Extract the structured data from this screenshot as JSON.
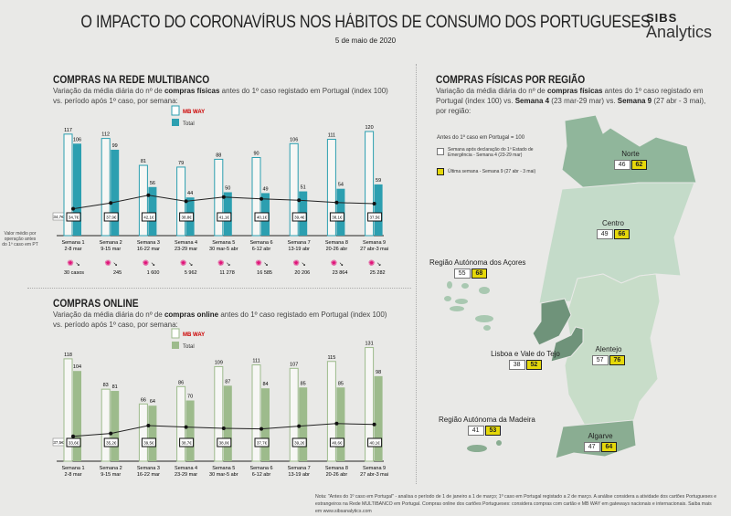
{
  "header": {
    "title": "O IMPACTO DO CORONAVÍRUS NOS HÁBITOS DE CONSUMO DOS PORTUGUESES",
    "date": "5 de maio de 2020",
    "logo_top": "SIBS",
    "logo_bottom": "Analytics"
  },
  "colors": {
    "multibanco": "#2c9fb0",
    "online": "#9dbb8c",
    "highlight": "#e5d80a",
    "cases": "#e0157a"
  },
  "weeks": [
    "Semana 1",
    "Semana 2",
    "Semana 3",
    "Semana 4",
    "Semana 5",
    "Semana 6",
    "Semana 7",
    "Semana 8",
    "Semana 9"
  ],
  "week_dates": [
    "2-8 mar",
    "9-15 mar",
    "16-22 mar",
    "23-29 mar",
    "30 mar-5 abr",
    "6-12 abr",
    "13-19 abr",
    "20-26 abr",
    "27 abr-3 mai"
  ],
  "legend": {
    "mbway": "MB WAY",
    "total": "Total"
  },
  "avg_note": "Valor médio por operação antes do 1º caso em PT",
  "chart_data": [
    {
      "type": "bar",
      "title": "COMPRAS NA REDE MULTIBANCO",
      "subtitle_parts": [
        "Variação da média diária do nº de ",
        "compras físicas",
        " antes do 1º caso registado em Portugal (index 100) vs. período após 1º caso, por semana:"
      ],
      "series": [
        {
          "name": "MB WAY",
          "values": [
            117,
            112,
            81,
            79,
            88,
            90,
            106,
            111,
            120
          ]
        },
        {
          "name": "Total",
          "values": [
            106,
            99,
            56,
            44,
            50,
            49,
            51,
            54,
            59
          ]
        }
      ],
      "avg_before": "34,7€",
      "avg_ticket": [
        "34,7€",
        "37,9€",
        "42,1€",
        "38,8€",
        "41,1€",
        "40,1€",
        "39,4€",
        "38,1€",
        "37,5€"
      ],
      "avg_ticket_values": [
        34.7,
        37.9,
        42.1,
        38.8,
        41.1,
        40.1,
        39.4,
        38.1,
        37.5
      ],
      "cases": [
        "30 casos",
        "245",
        "1 600",
        "5 962",
        "11 278",
        "16 585",
        "20 206",
        "23 864",
        "25 282"
      ]
    },
    {
      "type": "bar",
      "title": "COMPRAS ONLINE",
      "subtitle_parts": [
        "Variação da média diária do nº de ",
        "compras online",
        " antes do 1º caso registado em Portugal (index 100) vs. período após 1º caso, por semana:"
      ],
      "series": [
        {
          "name": "MB WAY",
          "values": [
            118,
            83,
            66,
            86,
            109,
            111,
            107,
            115,
            131
          ]
        },
        {
          "name": "Total",
          "values": [
            104,
            81,
            64,
            70,
            87,
            84,
            85,
            85,
            98
          ]
        }
      ],
      "avg_before": "37,5€",
      "avg_ticket": [
        "33,6€",
        "35,2€",
        "39,5€",
        "38,7€",
        "38,0€",
        "37,7€",
        "39,2€",
        "40,6€",
        "40,1€"
      ],
      "avg_ticket_values": [
        33.6,
        35.2,
        39.5,
        38.7,
        38.0,
        37.7,
        39.2,
        40.6,
        40.1
      ]
    }
  ],
  "regions": {
    "title": "COMPRAS FÍSICAS POR REGIÃO",
    "subtitle_parts": [
      "Variação da média diária do nº de ",
      "compras físicas",
      " antes do 1º caso registado em Portugal (index 100) vs. ",
      "Semana 4",
      " (23 mar-29 mar) vs. ",
      "Semana 9",
      " (27 abr - 3 mai), por região:"
    ],
    "legend_base": "Antes do 1º caso em Portugal = 100",
    "legend_w4": "Semana após declaração do 1º Estado de Emergência - Semana 4 (23-29 mar)",
    "legend_w9": "Última semana - Semana 9 (27 abr - 3 mai)",
    "items": [
      {
        "name": "Norte",
        "w4": "46",
        "w9": "62"
      },
      {
        "name": "Centro",
        "w4": "49",
        "w9": "66"
      },
      {
        "name": "Região Autónoma dos Açores",
        "w4": "55",
        "w9": "68"
      },
      {
        "name": "Lisboa e Vale do Tejo",
        "w4": "38",
        "w9": "52"
      },
      {
        "name": "Alentejo",
        "w4": "57",
        "w9": "76"
      },
      {
        "name": "Região Autónoma da Madeira",
        "w4": "41",
        "w9": "53"
      },
      {
        "name": "Algarve",
        "w4": "47",
        "w9": "64"
      }
    ]
  },
  "note": "Nota: \"Antes do 1º caso em Portugal\" - analisa o período de 1 de janeiro a 1 de março; 1º caso em Portugal registado a 2 de março. A análise considera a atividade dos cartões Portugueses e estrangeiros na Rede MULTIBANCO em Portugal. Compras online dos cartões Portugueses: considera compras com cartão e MB WAY em gateways nacionais e internacionais. Saiba mais em www.sibsanalytics.com"
}
